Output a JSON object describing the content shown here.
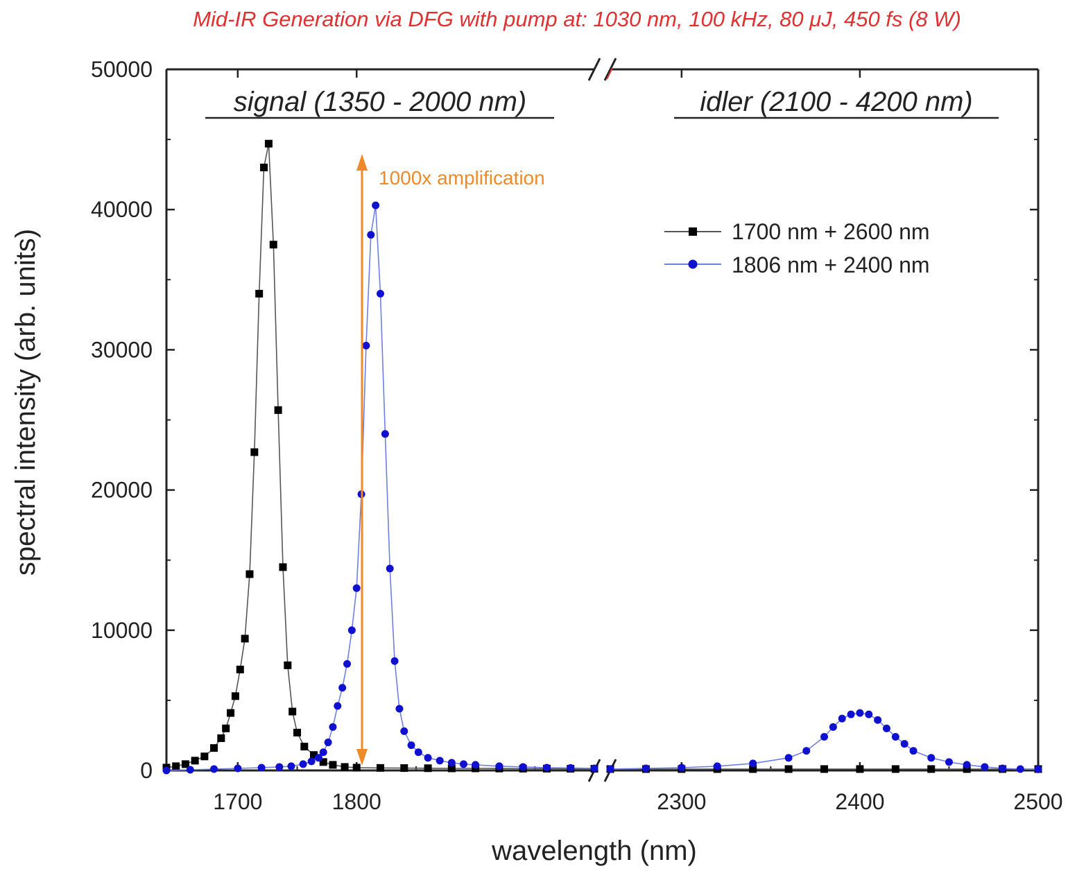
{
  "chart_data": {
    "type": "scatter",
    "title": "Mid-IR Generation via DFG with pump at: 1030 nm, 100 kHz, 80 μJ, 450 fs (8 W)",
    "xlabel": "wavelength (nm)",
    "ylabel": "spectral intensity (arb. units)",
    "x_axis_break": true,
    "x_segments": [
      {
        "xlim": [
          1640,
          2000
        ],
        "ticks": [
          1700,
          1800
        ]
      },
      {
        "xlim": [
          2260,
          2500
        ],
        "ticks": [
          2300,
          2400,
          2500
        ]
      }
    ],
    "ylim": [
      0,
      50000
    ],
    "yticks": [
      0,
      10000,
      20000,
      30000,
      40000,
      50000
    ],
    "grid": false,
    "legend_position": "top-right",
    "region_labels": [
      "signal (1350 - 2000 nm)",
      "idler (2100 - 4200 nm)"
    ],
    "annotations": [
      {
        "text": "1000x amplification",
        "arrow_x": 1750,
        "arrow_y": [
          500,
          44000
        ]
      }
    ],
    "series": [
      {
        "name": "1700 nm + 2600 nm",
        "marker": "square",
        "color": "#000000",
        "line_color": "#555555",
        "x": [
          1640,
          1648,
          1656,
          1664,
          1672,
          1680,
          1686,
          1690,
          1694,
          1698,
          1702,
          1706,
          1710,
          1714,
          1718,
          1722,
          1726,
          1730,
          1734,
          1738,
          1742,
          1746,
          1750,
          1756,
          1764,
          1772,
          1780,
          1790,
          1800,
          1820,
          1840,
          1860,
          1880,
          1900,
          1920,
          1940,
          1960,
          1980,
          2000,
          2260,
          2280,
          2300,
          2320,
          2340,
          2360,
          2380,
          2400,
          2420,
          2440,
          2460,
          2480,
          2500
        ],
        "y": [
          200,
          300,
          450,
          700,
          1000,
          1600,
          2300,
          3000,
          4100,
          5300,
          7200,
          9400,
          14000,
          22700,
          34000,
          43000,
          44700,
          37500,
          25700,
          14500,
          7500,
          4200,
          2700,
          1700,
          1100,
          600,
          400,
          250,
          200,
          180,
          170,
          160,
          150,
          150,
          140,
          130,
          130,
          120,
          120,
          100,
          100,
          100,
          100,
          100,
          100,
          100,
          100,
          100,
          100,
          100,
          100,
          100
        ]
      },
      {
        "name": "1806 nm + 2400 nm",
        "marker": "circle",
        "color": "#1010d0",
        "line_color": "#6f7fe0",
        "x": [
          1640,
          1660,
          1680,
          1700,
          1720,
          1735,
          1745,
          1755,
          1762,
          1768,
          1772,
          1776,
          1780,
          1784,
          1788,
          1792,
          1796,
          1800,
          1804,
          1808,
          1812,
          1816,
          1820,
          1824,
          1828,
          1832,
          1836,
          1840,
          1846,
          1852,
          1860,
          1870,
          1880,
          1890,
          1900,
          1920,
          1940,
          1960,
          1980,
          2000,
          2260,
          2280,
          2300,
          2320,
          2340,
          2360,
          2370,
          2380,
          2385,
          2390,
          2395,
          2400,
          2405,
          2410,
          2415,
          2420,
          2425,
          2430,
          2440,
          2450,
          2460,
          2470,
          2480,
          2490,
          2500
        ],
        "y": [
          0,
          50,
          100,
          150,
          200,
          250,
          300,
          450,
          650,
          900,
          1300,
          2000,
          3100,
          4600,
          5900,
          7600,
          10000,
          13000,
          19700,
          30300,
          38200,
          40300,
          34000,
          24000,
          14400,
          7800,
          4400,
          2800,
          1800,
          1300,
          900,
          700,
          550,
          450,
          400,
          300,
          250,
          200,
          180,
          150,
          100,
          150,
          200,
          300,
          500,
          900,
          1400,
          2400,
          3100,
          3700,
          4000,
          4100,
          4000,
          3600,
          3000,
          2400,
          1900,
          1400,
          900,
          600,
          400,
          250,
          150,
          100,
          80
        ]
      }
    ]
  }
}
